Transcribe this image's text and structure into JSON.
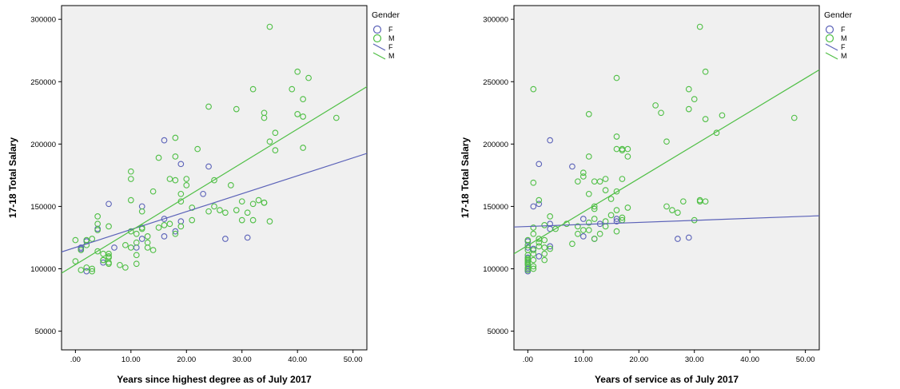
{
  "colors": {
    "F": "#5b62b8",
    "M": "#4fbf45",
    "plot_bg": "#f0f0f0"
  },
  "chart_data": [
    {
      "type": "scatter",
      "xlabel": "Years since highest degree as of July 2017",
      "ylabel": "17-18 Total Salary",
      "xlim": [
        -2.5,
        52.5
      ],
      "ylim": [
        35000,
        311000
      ],
      "xticks": [
        0,
        10,
        20,
        30,
        40,
        50
      ],
      "xtick_labels": [
        ".00",
        "10.00",
        "20.00",
        "30.00",
        "40.00",
        "50.00"
      ],
      "yticks": [
        50000,
        100000,
        150000,
        200000,
        250000,
        300000
      ],
      "ytick_labels": [
        "50000",
        "100000",
        "150000",
        "200000",
        "250000",
        "300000"
      ],
      "legend_title": "Gender",
      "legend_position": "top-right",
      "legend_entries": [
        {
          "kind": "marker",
          "label": "F",
          "series": "F"
        },
        {
          "kind": "marker",
          "label": "M",
          "series": "M"
        },
        {
          "kind": "line",
          "label": "F",
          "series": "F"
        },
        {
          "kind": "line",
          "label": "M",
          "series": "M"
        }
      ],
      "series": [
        {
          "name": "F",
          "points": [
            [
              1,
              116000
            ],
            [
              1,
              117000
            ],
            [
              2,
              122000
            ],
            [
              2,
              98000
            ],
            [
              4,
              132000
            ],
            [
              5,
              105000
            ],
            [
              6,
              152000
            ],
            [
              7,
              117000
            ],
            [
              11,
              117000
            ],
            [
              12,
              150000
            ],
            [
              12,
              124000
            ],
            [
              16,
              203000
            ],
            [
              16,
              140000
            ],
            [
              16,
              126000
            ],
            [
              18,
              130000
            ],
            [
              19,
              184000
            ],
            [
              19,
              138000
            ],
            [
              23,
              160000
            ],
            [
              24,
              182000
            ],
            [
              27,
              124000
            ],
            [
              31,
              125000
            ]
          ]
        },
        {
          "name": "M",
          "points": [
            [
              0,
              106000
            ],
            [
              0,
              123000
            ],
            [
              1,
              99000
            ],
            [
              1,
              115000
            ],
            [
              2,
              119000
            ],
            [
              2,
              123000
            ],
            [
              2,
              101000
            ],
            [
              3,
              98000
            ],
            [
              3,
              124000
            ],
            [
              3,
              100000
            ],
            [
              4,
              114000
            ],
            [
              4,
              142000
            ],
            [
              4,
              136000
            ],
            [
              4,
              131000
            ],
            [
              5,
              112000
            ],
            [
              5,
              107000
            ],
            [
              5,
              107000
            ],
            [
              6,
              110000
            ],
            [
              6,
              109000
            ],
            [
              6,
              134000
            ],
            [
              6,
              104000
            ],
            [
              6,
              112000
            ],
            [
              6,
              105000
            ],
            [
              8,
              103000
            ],
            [
              9,
              101000
            ],
            [
              9,
              119000
            ],
            [
              10,
              178000
            ],
            [
              10,
              172000
            ],
            [
              10,
              155000
            ],
            [
              10,
              130000
            ],
            [
              10,
              117000
            ],
            [
              11,
              111000
            ],
            [
              11,
              104000
            ],
            [
              11,
              121000
            ],
            [
              11,
              128000
            ],
            [
              12,
              132000
            ],
            [
              12,
              133000
            ],
            [
              12,
              146000
            ],
            [
              13,
              117000
            ],
            [
              13,
              126000
            ],
            [
              13,
              121000
            ],
            [
              14,
              162000
            ],
            [
              14,
              115000
            ],
            [
              15,
              133000
            ],
            [
              15,
              189000
            ],
            [
              16,
              135000
            ],
            [
              17,
              172000
            ],
            [
              17,
              136000
            ],
            [
              18,
              205000
            ],
            [
              18,
              190000
            ],
            [
              18,
              171000
            ],
            [
              18,
              128000
            ],
            [
              19,
              160000
            ],
            [
              19,
              154000
            ],
            [
              19,
              134000
            ],
            [
              20,
              172000
            ],
            [
              20,
              167000
            ],
            [
              21,
              139000
            ],
            [
              21,
              149000
            ],
            [
              22,
              196000
            ],
            [
              24,
              230000
            ],
            [
              24,
              146000
            ],
            [
              25,
              171000
            ],
            [
              25,
              150000
            ],
            [
              26,
              147000
            ],
            [
              27,
              145000
            ],
            [
              28,
              167000
            ],
            [
              29,
              228000
            ],
            [
              29,
              147000
            ],
            [
              30,
              139000
            ],
            [
              30,
              154000
            ],
            [
              31,
              145000
            ],
            [
              32,
              244000
            ],
            [
              32,
              152000
            ],
            [
              32,
              139000
            ],
            [
              33,
              155000
            ],
            [
              34,
              221000
            ],
            [
              34,
              225000
            ],
            [
              34,
              153000
            ],
            [
              34,
              153000
            ],
            [
              35,
              294000
            ],
            [
              35,
              202000
            ],
            [
              35,
              138000
            ],
            [
              36,
              209000
            ],
            [
              36,
              195000
            ],
            [
              39,
              244000
            ],
            [
              40,
              258000
            ],
            [
              40,
              224000
            ],
            [
              41,
              236000
            ],
            [
              41,
              222000
            ],
            [
              41,
              197000
            ],
            [
              42,
              253000
            ],
            [
              47,
              221000
            ]
          ]
        }
      ],
      "fit_lines": [
        {
          "series": "F",
          "x": [
            -2.5,
            52.5
          ],
          "y": [
            113500,
            192500
          ]
        },
        {
          "series": "M",
          "x": [
            -2.5,
            52.5
          ],
          "y": [
            96500,
            246000
          ]
        }
      ]
    },
    {
      "type": "scatter",
      "xlabel": "Years of service as of July 2017",
      "ylabel": "17-18 Total Salary",
      "xlim": [
        -2.5,
        52.5
      ],
      "ylim": [
        35000,
        311000
      ],
      "xticks": [
        0,
        10,
        20,
        30,
        40,
        50
      ],
      "xtick_labels": [
        ".00",
        "10.00",
        "20.00",
        "30.00",
        "40.00",
        "50.00"
      ],
      "yticks": [
        50000,
        100000,
        150000,
        200000,
        250000,
        300000
      ],
      "ytick_labels": [
        "50000",
        "100000",
        "150000",
        "200000",
        "250000",
        "300000"
      ],
      "legend_title": "Gender",
      "legend_position": "top-right",
      "legend_entries": [
        {
          "kind": "marker",
          "label": "F",
          "series": "F"
        },
        {
          "kind": "marker",
          "label": "M",
          "series": "M"
        },
        {
          "kind": "line",
          "label": "F",
          "series": "F"
        },
        {
          "kind": "line",
          "label": "M",
          "series": "M"
        }
      ],
      "series": [
        {
          "name": "F",
          "points": [
            [
              0,
              98000
            ],
            [
              0,
              100000
            ],
            [
              0,
              104000
            ],
            [
              0,
              109000
            ],
            [
              0,
              117000
            ],
            [
              0,
              122000
            ],
            [
              1,
              150000
            ],
            [
              1,
              116000
            ],
            [
              2,
              184000
            ],
            [
              2,
              152000
            ],
            [
              2,
              110000
            ],
            [
              4,
              203000
            ],
            [
              4,
              136000
            ],
            [
              4,
              132000
            ],
            [
              4,
              118000
            ],
            [
              8,
              182000
            ],
            [
              10,
              140000
            ],
            [
              10,
              126000
            ],
            [
              12,
              124000
            ],
            [
              13,
              136000
            ],
            [
              16,
              140000
            ],
            [
              16,
              138000
            ],
            [
              27,
              124000
            ],
            [
              29,
              125000
            ]
          ]
        },
        {
          "name": "M",
          "points": [
            [
              0,
              99000
            ],
            [
              0,
              101000
            ],
            [
              0,
              103000
            ],
            [
              0,
              105000
            ],
            [
              0,
              106000
            ],
            [
              0,
              107000
            ],
            [
              0,
              108000
            ],
            [
              0,
              111000
            ],
            [
              0,
              115000
            ],
            [
              0,
              119000
            ],
            [
              0,
              123000
            ],
            [
              1,
              244000
            ],
            [
              1,
              169000
            ],
            [
              1,
              133000
            ],
            [
              1,
              128000
            ],
            [
              1,
              112000
            ],
            [
              1,
              115000
            ],
            [
              1,
              107000
            ],
            [
              1,
              100000
            ],
            [
              1,
              102000
            ],
            [
              2,
              118000
            ],
            [
              2,
              121000
            ],
            [
              2,
              124000
            ],
            [
              2,
              155000
            ],
            [
              3,
              135000
            ],
            [
              3,
              123000
            ],
            [
              3,
              117000
            ],
            [
              3,
              112000
            ],
            [
              3,
              107000
            ],
            [
              4,
              142000
            ],
            [
              4,
              116000
            ],
            [
              5,
              132000
            ],
            [
              7,
              136000
            ],
            [
              8,
              120000
            ],
            [
              9,
              170000
            ],
            [
              9,
              128000
            ],
            [
              9,
              134000
            ],
            [
              10,
              177000
            ],
            [
              10,
              174000
            ],
            [
              10,
              131000
            ],
            [
              11,
              224000
            ],
            [
              11,
              190000
            ],
            [
              11,
              160000
            ],
            [
              11,
              137000
            ],
            [
              11,
              131000
            ],
            [
              12,
              170000
            ],
            [
              12,
              150000
            ],
            [
              12,
              148000
            ],
            [
              12,
              124000
            ],
            [
              12,
              140000
            ],
            [
              13,
              170000
            ],
            [
              13,
              128000
            ],
            [
              14,
              172000
            ],
            [
              14,
              163000
            ],
            [
              14,
              134000
            ],
            [
              14,
              138000
            ],
            [
              15,
              156000
            ],
            [
              15,
              143000
            ],
            [
              16,
              253000
            ],
            [
              16,
              206000
            ],
            [
              16,
              196000
            ],
            [
              16,
              162000
            ],
            [
              16,
              147000
            ],
            [
              16,
              130000
            ],
            [
              17,
              195000
            ],
            [
              17,
              196000
            ],
            [
              17,
              172000
            ],
            [
              17,
              141000
            ],
            [
              17,
              139000
            ],
            [
              18,
              196000
            ],
            [
              18,
              190000
            ],
            [
              18,
              149000
            ],
            [
              23,
              231000
            ],
            [
              24,
              225000
            ],
            [
              25,
              202000
            ],
            [
              25,
              150000
            ],
            [
              26,
              147000
            ],
            [
              27,
              145000
            ],
            [
              28,
              154000
            ],
            [
              29,
              228000
            ],
            [
              29,
              244000
            ],
            [
              30,
              236000
            ],
            [
              30,
              139000
            ],
            [
              31,
              294000
            ],
            [
              31,
              155000
            ],
            [
              31,
              154000
            ],
            [
              32,
              258000
            ],
            [
              32,
              220000
            ],
            [
              32,
              154000
            ],
            [
              34,
              209000
            ],
            [
              35,
              223000
            ],
            [
              48,
              221000
            ]
          ]
        }
      ],
      "fit_lines": [
        {
          "series": "F",
          "x": [
            -2.5,
            52.5
          ],
          "y": [
            133500,
            142500
          ]
        },
        {
          "series": "M",
          "x": [
            -2.5,
            52.5
          ],
          "y": [
            112000,
            259500
          ]
        }
      ]
    }
  ]
}
